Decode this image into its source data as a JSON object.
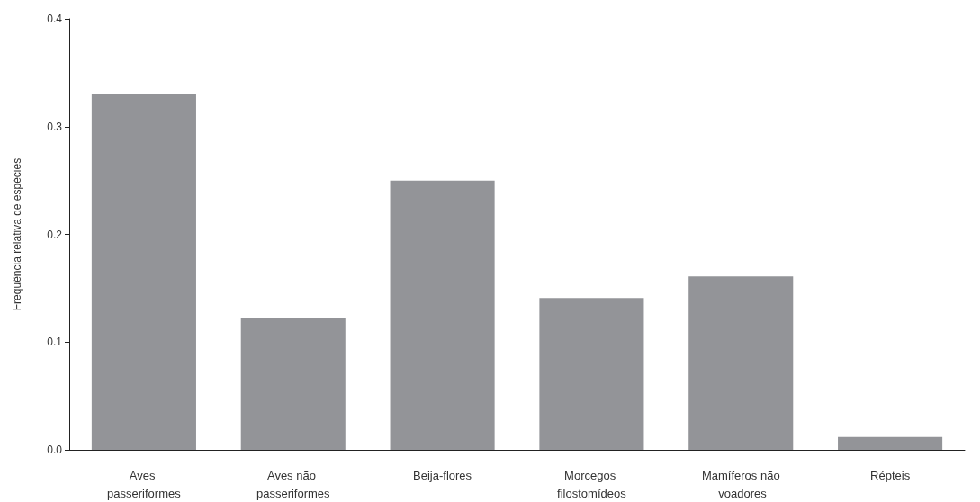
{
  "chart_data": {
    "type": "bar",
    "ylabel": "Frequência relativa de espécies",
    "categories": [
      "Aves passeriformes",
      "Aves não passeriformes",
      "Beija-flores",
      "Morcegos filostomídeos",
      "Mamíferos não voadores",
      "Répteis"
    ],
    "values": [
      0.33,
      0.122,
      0.25,
      0.141,
      0.161,
      0.012
    ],
    "color": "#939498",
    "ylim": [
      0,
      0.4
    ],
    "yticks": [
      {
        "value": 0,
        "label": "0.0"
      },
      0.1,
      0.2,
      0.3,
      0.4
    ],
    "grid": false
  }
}
